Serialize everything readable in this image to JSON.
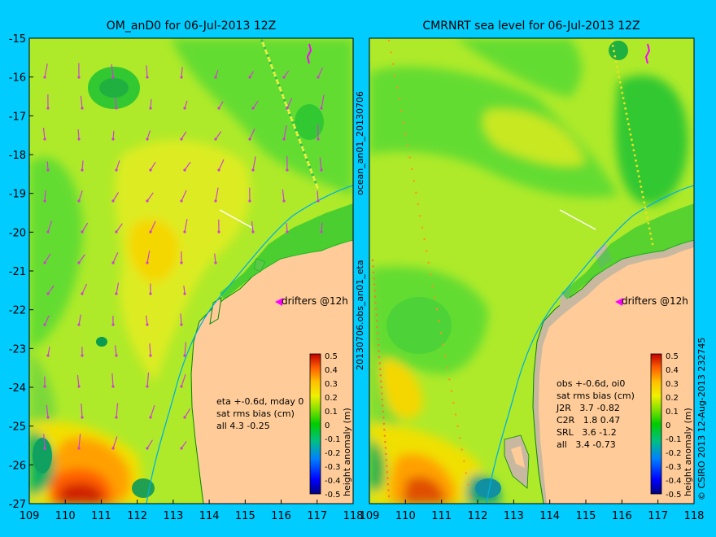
{
  "chart_data": [
    {
      "type": "heatmap",
      "title": "OM_anD0 for 06-Jul-2013 12Z",
      "x_ticks": [
        109,
        110,
        111,
        112,
        113,
        114,
        115,
        116,
        117,
        118
      ],
      "y_ticks": [
        -15,
        -16,
        -17,
        -18,
        -19,
        -20,
        -21,
        -22,
        -23,
        -24,
        -25,
        -26,
        -27
      ],
      "xlim": [
        109,
        118
      ],
      "ylim": [
        -27,
        -15
      ],
      "annotation_drifters": "drifters @12h",
      "stats_lines": [
        "eta +-0.6d, mday 0",
        "sat rms bias (cm)",
        "all 4.3 -0.25"
      ],
      "colorbar": {
        "label": "height anomaly (m)",
        "ticks": [
          "0.5",
          "0.4",
          "0.3",
          "0.2",
          "0.1",
          "0",
          "-0.1",
          "-0.2",
          "-0.3",
          "-0.4",
          "-0.5"
        ]
      }
    },
    {
      "type": "heatmap",
      "title": "CMRNRT sea level  for 06-Jul-2013 12Z",
      "x_ticks": [
        109,
        110,
        111,
        112,
        113,
        114,
        115,
        116,
        117,
        118
      ],
      "xlim": [
        109,
        118
      ],
      "ylim": [
        -27,
        -15
      ],
      "annotation_drifters": "drifters @12h",
      "stats_lines": [
        "obs +-0.6d, oi0",
        "sat rms bias (cm)",
        "J2R   3.7 -0.82",
        "C2R   1.8 0.47",
        "SRL   3.6 -1.2",
        "all   3.4 -0.73"
      ],
      "colorbar": {
        "label": "height anomaly (m)",
        "ticks": [
          "0.5",
          "0.4",
          "0.3",
          "0.2",
          "0.1",
          "0",
          "-0.1",
          "-0.2",
          "-0.3",
          "-0.4",
          "-0.5"
        ]
      }
    }
  ],
  "side_labels": {
    "middle_top": "ocean_an01_20130706",
    "middle_bottom": "20130706.obs_an01_eta",
    "right_credit": "© CSIRO 2013  12-Aug-2013 232745"
  },
  "colors": {
    "background": "#00ccff",
    "land": "#ffcc99",
    "drifter": "#ff00ff",
    "coast_edge": "#008800"
  }
}
